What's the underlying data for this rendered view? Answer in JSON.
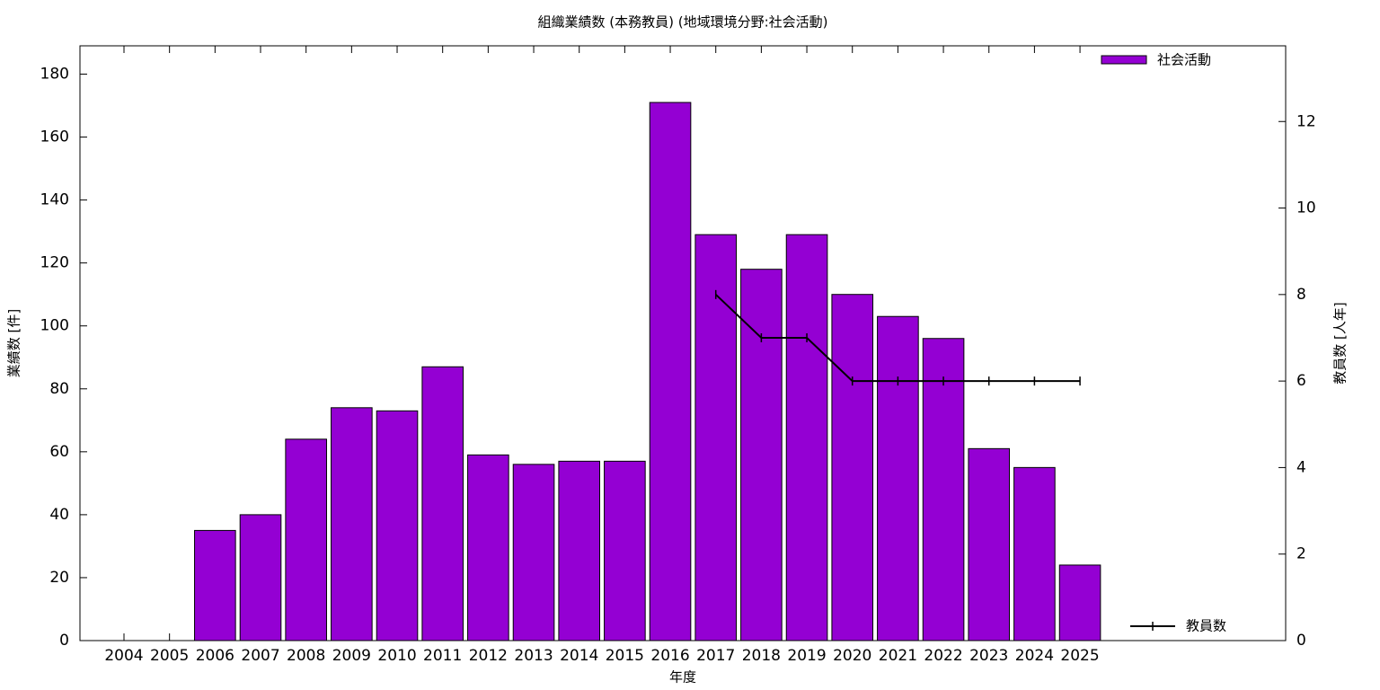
{
  "chart_data": {
    "type": "bar",
    "title": "組織業績数 (本務教員) (地域環境分野:社会活動)",
    "x_label": "年度",
    "y_label": "業績数 [件]",
    "y2_label": "教員数 [人年]",
    "categories": [
      "2004",
      "2005",
      "2006",
      "2007",
      "2008",
      "2009",
      "2010",
      "2011",
      "2012",
      "2013",
      "2014",
      "2015",
      "2016",
      "2017",
      "2018",
      "2019",
      "2020",
      "2021",
      "2022",
      "2023",
      "2024",
      "2025"
    ],
    "series": [
      {
        "name": "社会活動",
        "type": "bar",
        "color": "#9400d3",
        "values": [
          0,
          0,
          35,
          40,
          64,
          74,
          73,
          87,
          59,
          56,
          57,
          57,
          171,
          129,
          118,
          129,
          110,
          103,
          96,
          61,
          55,
          24
        ]
      },
      {
        "name": "教員数",
        "type": "line",
        "axis": "y2",
        "color": "#000000",
        "values": [
          null,
          null,
          null,
          null,
          null,
          null,
          null,
          null,
          null,
          null,
          null,
          null,
          null,
          8,
          7,
          7,
          6,
          6,
          6,
          6,
          6,
          6
        ]
      }
    ],
    "ylim": [
      0,
      189
    ],
    "yticks": [
      0,
      20,
      40,
      60,
      80,
      100,
      120,
      140,
      160,
      180
    ],
    "y2lim": [
      0,
      13.75
    ],
    "y2ticks": [
      0,
      2,
      4,
      6,
      8,
      10,
      12
    ]
  }
}
